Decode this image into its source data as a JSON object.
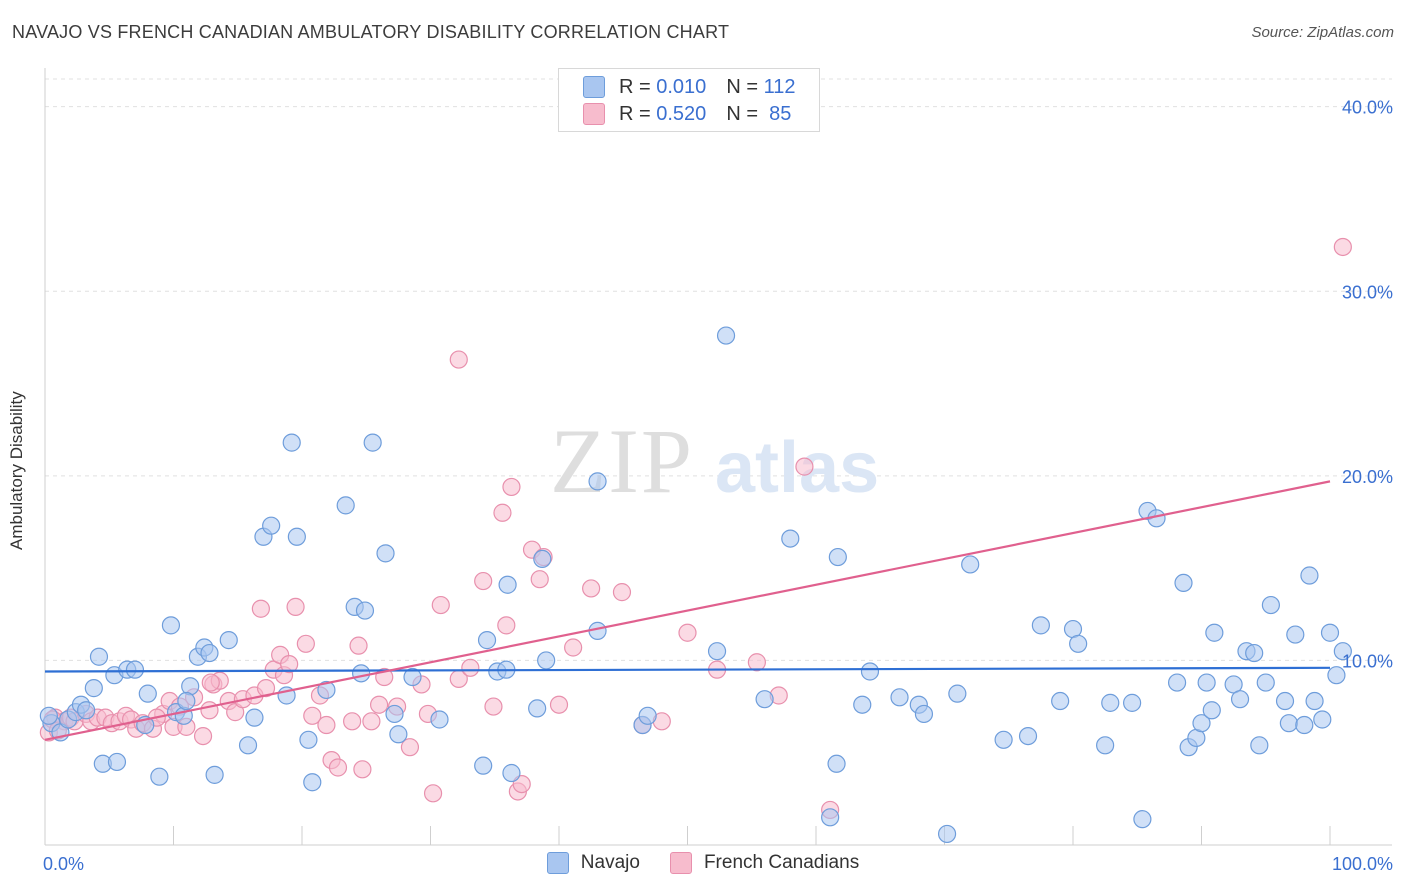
{
  "title": "NAVAJO VS FRENCH CANADIAN AMBULATORY DISABILITY CORRELATION CHART",
  "source": "Source: ZipAtlas.com",
  "watermark": {
    "zip": "ZIP",
    "atlas": "atlas"
  },
  "legend": {
    "rows": [
      {
        "r_label": "R =",
        "r_value": "0.010",
        "n_label": "N =",
        "n_value": "112"
      },
      {
        "r_label": "R =",
        "r_value": "0.520",
        "n_label": "N =",
        "n_value": "85"
      }
    ]
  },
  "bottom_legend": [
    "Navajo",
    "French Canadians"
  ],
  "colors": {
    "navajo_fill": "#a9c6f0",
    "navajo_stroke": "#6e9ddb",
    "navajo_line": "#2e6fd4",
    "french_fill": "#f7bccd",
    "french_stroke": "#e890ad",
    "french_line": "#e0608e",
    "axis_text": "#3a6fd0",
    "grid": "#e0e0e0"
  },
  "chart_data": {
    "type": "scatter",
    "title": "NAVAJO VS FRENCH CANADIAN AMBULATORY DISABILITY CORRELATION CHART",
    "xlabel": "",
    "ylabel": "Ambulatory Disability",
    "xlim": [
      0,
      100
    ],
    "ylim": [
      0,
      41.5
    ],
    "x_tick_labels": [
      "0.0%",
      "100.0%"
    ],
    "y_ticks": [
      10,
      20,
      30,
      40
    ],
    "y_tick_labels": [
      "10.0%",
      "20.0%",
      "30.0%",
      "40.0%"
    ],
    "grid": true,
    "legend_position": "top-center",
    "series": [
      {
        "name": "Navajo",
        "color": "#a9c6f0",
        "trend": {
          "x": [
            0,
            100
          ],
          "y": [
            9.4,
            9.6
          ]
        },
        "points": [
          [
            0.5,
            6.6
          ],
          [
            1.2,
            6.1
          ],
          [
            1.8,
            6.8
          ],
          [
            2.4,
            7.2
          ],
          [
            2.8,
            7.6
          ],
          [
            3.2,
            7.3
          ],
          [
            3.8,
            8.5
          ],
          [
            4.2,
            10.2
          ],
          [
            4.5,
            4.4
          ],
          [
            5.6,
            4.5
          ],
          [
            5.4,
            9.2
          ],
          [
            6.4,
            9.5
          ],
          [
            7.0,
            9.5
          ],
          [
            7.8,
            6.5
          ],
          [
            8.0,
            8.2
          ],
          [
            8.9,
            3.7
          ],
          [
            9.8,
            11.9
          ],
          [
            10.2,
            7.2
          ],
          [
            10.8,
            7.0
          ],
          [
            11.3,
            8.6
          ],
          [
            11.0,
            7.8
          ],
          [
            11.9,
            10.2
          ],
          [
            12.4,
            10.7
          ],
          [
            12.8,
            10.4
          ],
          [
            13.2,
            3.8
          ],
          [
            14.3,
            11.1
          ],
          [
            15.8,
            5.4
          ],
          [
            16.3,
            6.9
          ],
          [
            17.0,
            16.7
          ],
          [
            17.6,
            17.3
          ],
          [
            18.8,
            8.1
          ],
          [
            19.2,
            21.8
          ],
          [
            19.6,
            16.7
          ],
          [
            20.5,
            5.7
          ],
          [
            20.8,
            3.4
          ],
          [
            21.9,
            8.4
          ],
          [
            23.4,
            18.4
          ],
          [
            24.1,
            12.9
          ],
          [
            24.6,
            9.3
          ],
          [
            24.9,
            12.7
          ],
          [
            25.5,
            21.8
          ],
          [
            26.5,
            15.8
          ],
          [
            27.2,
            7.1
          ],
          [
            27.5,
            6.0
          ],
          [
            28.6,
            9.1
          ],
          [
            30.7,
            6.8
          ],
          [
            34.1,
            4.3
          ],
          [
            34.4,
            11.1
          ],
          [
            35.2,
            9.4
          ],
          [
            35.9,
            9.5
          ],
          [
            36.0,
            14.1
          ],
          [
            36.3,
            3.9
          ],
          [
            38.7,
            15.5
          ],
          [
            38.3,
            7.4
          ],
          [
            39.0,
            10.0
          ],
          [
            43.0,
            19.7
          ],
          [
            43.0,
            11.6
          ],
          [
            46.5,
            6.5
          ],
          [
            46.9,
            7.0
          ],
          [
            52.3,
            10.5
          ],
          [
            53.0,
            27.6
          ],
          [
            56.0,
            7.9
          ],
          [
            58.0,
            16.6
          ],
          [
            61.1,
            1.5
          ],
          [
            61.6,
            4.4
          ],
          [
            61.7,
            15.6
          ],
          [
            64.2,
            9.4
          ],
          [
            63.6,
            7.6
          ],
          [
            66.5,
            8.0
          ],
          [
            68.0,
            7.6
          ],
          [
            68.4,
            7.1
          ],
          [
            70.2,
            0.6
          ],
          [
            71.0,
            8.2
          ],
          [
            72.0,
            15.2
          ],
          [
            74.6,
            5.7
          ],
          [
            76.5,
            5.9
          ],
          [
            77.5,
            11.9
          ],
          [
            79.0,
            7.8
          ],
          [
            80.0,
            11.7
          ],
          [
            80.4,
            10.9
          ],
          [
            82.5,
            5.4
          ],
          [
            82.9,
            7.7
          ],
          [
            84.6,
            7.7
          ],
          [
            85.4,
            1.4
          ],
          [
            85.8,
            18.1
          ],
          [
            86.5,
            17.7
          ],
          [
            88.1,
            8.8
          ],
          [
            88.6,
            14.2
          ],
          [
            89.0,
            5.3
          ],
          [
            89.6,
            5.8
          ],
          [
            90.0,
            6.6
          ],
          [
            90.4,
            8.8
          ],
          [
            90.8,
            7.3
          ],
          [
            91.0,
            11.5
          ],
          [
            92.5,
            8.7
          ],
          [
            93.0,
            7.9
          ],
          [
            93.5,
            10.5
          ],
          [
            94.1,
            10.4
          ],
          [
            94.5,
            5.4
          ],
          [
            95.0,
            8.8
          ],
          [
            95.4,
            13.0
          ],
          [
            96.5,
            7.8
          ],
          [
            96.8,
            6.6
          ],
          [
            97.3,
            11.4
          ],
          [
            98.0,
            6.5
          ],
          [
            98.4,
            14.6
          ],
          [
            98.8,
            7.8
          ],
          [
            99.4,
            6.8
          ],
          [
            100.0,
            11.5
          ],
          [
            100.5,
            9.2
          ],
          [
            101.0,
            10.5
          ],
          [
            0.3,
            7.0
          ]
        ]
      },
      {
        "name": "French Canadians",
        "color": "#f7bccd",
        "trend": {
          "x": [
            0,
            100
          ],
          "y": [
            5.7,
            19.7
          ]
        },
        "points": [
          [
            0.3,
            6.1
          ],
          [
            0.8,
            6.9
          ],
          [
            1.5,
            6.7
          ],
          [
            2.0,
            6.9
          ],
          [
            2.3,
            6.7
          ],
          [
            3.2,
            7.1
          ],
          [
            3.6,
            6.7
          ],
          [
            4.1,
            6.9
          ],
          [
            4.7,
            6.9
          ],
          [
            5.2,
            6.6
          ],
          [
            5.8,
            6.7
          ],
          [
            6.3,
            7.0
          ],
          [
            6.7,
            6.8
          ],
          [
            7.1,
            6.3
          ],
          [
            7.6,
            6.6
          ],
          [
            8.4,
            6.3
          ],
          [
            9.2,
            7.1
          ],
          [
            9.7,
            7.8
          ],
          [
            10.0,
            6.4
          ],
          [
            10.5,
            7.5
          ],
          [
            11.0,
            6.4
          ],
          [
            11.6,
            8.0
          ],
          [
            12.3,
            5.9
          ],
          [
            12.8,
            7.3
          ],
          [
            13.1,
            8.7
          ],
          [
            13.6,
            8.9
          ],
          [
            14.3,
            7.8
          ],
          [
            14.8,
            7.2
          ],
          [
            15.4,
            7.9
          ],
          [
            16.3,
            8.1
          ],
          [
            16.8,
            12.8
          ],
          [
            17.2,
            8.5
          ],
          [
            17.8,
            9.5
          ],
          [
            18.3,
            10.3
          ],
          [
            18.6,
            9.2
          ],
          [
            19.0,
            9.8
          ],
          [
            19.5,
            12.9
          ],
          [
            20.3,
            10.9
          ],
          [
            20.8,
            7.0
          ],
          [
            21.4,
            8.1
          ],
          [
            21.9,
            6.5
          ],
          [
            22.3,
            4.6
          ],
          [
            22.8,
            4.2
          ],
          [
            23.9,
            6.7
          ],
          [
            24.4,
            10.8
          ],
          [
            24.7,
            4.1
          ],
          [
            25.4,
            6.7
          ],
          [
            26.0,
            7.6
          ],
          [
            26.4,
            9.1
          ],
          [
            27.4,
            7.5
          ],
          [
            28.4,
            5.3
          ],
          [
            29.3,
            8.7
          ],
          [
            29.8,
            7.1
          ],
          [
            30.2,
            2.8
          ],
          [
            30.8,
            13.0
          ],
          [
            32.2,
            9.0
          ],
          [
            32.2,
            26.3
          ],
          [
            33.1,
            9.6
          ],
          [
            34.1,
            14.3
          ],
          [
            34.9,
            7.5
          ],
          [
            35.6,
            18.0
          ],
          [
            35.9,
            11.9
          ],
          [
            36.3,
            19.4
          ],
          [
            36.8,
            2.9
          ],
          [
            37.1,
            3.3
          ],
          [
            37.9,
            16.0
          ],
          [
            38.5,
            14.4
          ],
          [
            38.8,
            15.6
          ],
          [
            40.0,
            7.6
          ],
          [
            41.1,
            10.7
          ],
          [
            42.5,
            13.9
          ],
          [
            44.9,
            13.7
          ],
          [
            46.5,
            6.5
          ],
          [
            50.0,
            11.5
          ],
          [
            52.3,
            9.5
          ],
          [
            55.4,
            9.9
          ],
          [
            57.1,
            8.1
          ],
          [
            59.1,
            20.5
          ],
          [
            61.1,
            1.9
          ],
          [
            101.0,
            32.4
          ],
          [
            0.6,
            6.8
          ],
          [
            1.0,
            6.2
          ],
          [
            8.7,
            6.9
          ],
          [
            12.9,
            8.8
          ],
          [
            48.0,
            6.7
          ]
        ]
      }
    ]
  }
}
